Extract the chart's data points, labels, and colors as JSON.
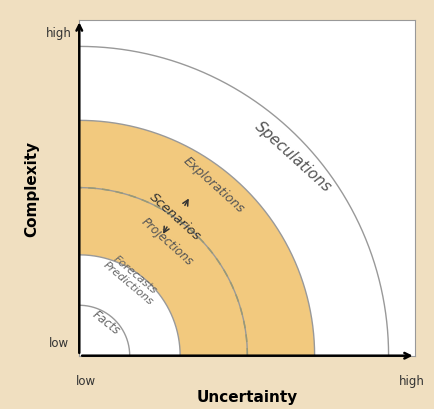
{
  "background_color": "#f0dfc0",
  "plot_bg": "#ffffff",
  "arc_color": "#999999",
  "arc_linewidth": 1.0,
  "fill_color_orange": "#f2c97e",
  "dashed_color": "#999977",
  "radii": [
    0.15,
    0.3,
    0.5,
    0.7,
    0.92
  ],
  "xlabel": "Uncertainty",
  "ylabel": "Complexity",
  "xlabel_fontsize": 11,
  "ylabel_fontsize": 11,
  "tick_labels": {
    "x_low": "low",
    "x_high": "high",
    "y_low": "low",
    "y_high": "high"
  }
}
